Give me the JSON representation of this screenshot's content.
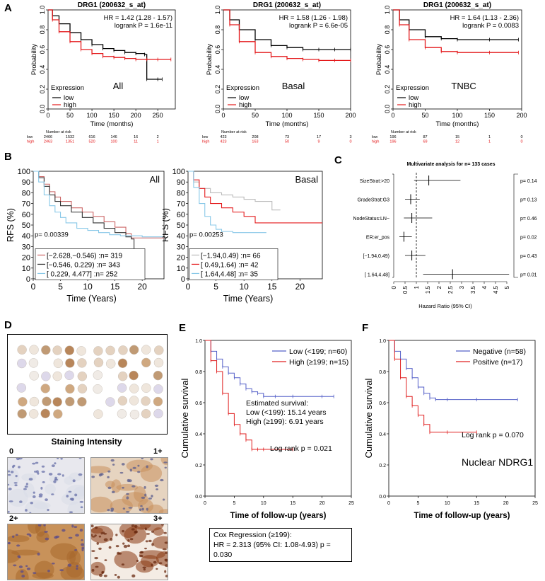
{
  "panel_letters": {
    "a": "A",
    "b": "B",
    "c": "C",
    "d": "D",
    "e": "E",
    "f": "F"
  },
  "chart_data": [
    {
      "id": "A1",
      "type": "line",
      "title": "DRG1 (200632_s_at)",
      "hr_text": "HR = 1.42 (1.28 - 1.57)",
      "p_text": "logrank P = 1.6e-11",
      "subset_label": "All",
      "xlabel": "Time (months)",
      "ylabel": "Probability",
      "xlim": [
        0,
        290
      ],
      "ylim": [
        0,
        1
      ],
      "xticks": [
        0,
        50,
        100,
        150,
        200,
        250
      ],
      "yticks": [
        0.0,
        0.2,
        0.4,
        0.6,
        0.8,
        1.0
      ],
      "legend_title": "Expression",
      "series": [
        {
          "name": "low",
          "color": "#000000",
          "x": [
            0,
            10,
            25,
            50,
            75,
            100,
            125,
            150,
            175,
            200,
            220,
            225,
            250,
            260
          ],
          "y": [
            1,
            0.94,
            0.86,
            0.77,
            0.7,
            0.65,
            0.61,
            0.59,
            0.57,
            0.56,
            0.55,
            0.3,
            0.3,
            0.3
          ]
        },
        {
          "name": "high",
          "color": "#e41a1c",
          "x": [
            0,
            10,
            25,
            50,
            75,
            100,
            125,
            150,
            175,
            200,
            225,
            250,
            280
          ],
          "y": [
            1,
            0.9,
            0.78,
            0.68,
            0.6,
            0.56,
            0.53,
            0.52,
            0.51,
            0.5,
            0.5,
            0.5,
            0.5
          ]
        }
      ],
      "risk_label": "Number at risk",
      "risk_x": [
        0,
        50,
        100,
        150,
        200,
        250
      ],
      "risk_rows": [
        {
          "name": "low",
          "values": [
            "2466",
            "1532",
            "616",
            "146",
            "16",
            "2"
          ]
        },
        {
          "name": "high",
          "values": [
            "2463",
            "1351",
            "520",
            "100",
            "11",
            "1"
          ]
        }
      ]
    },
    {
      "id": "A2",
      "type": "line",
      "title": "DRG1 (200632_s_at)",
      "hr_text": "HR = 1.58 (1.26 - 1.98)",
      "p_text": "logrank P = 6.6e-05",
      "subset_label": "Basal",
      "xlabel": "Time (months)",
      "ylabel": "Probability",
      "xlim": [
        0,
        200
      ],
      "ylim": [
        0,
        1
      ],
      "xticks": [
        0,
        50,
        100,
        150,
        200
      ],
      "yticks": [
        0.0,
        0.2,
        0.4,
        0.6,
        0.8,
        1.0
      ],
      "legend_title": "Expression",
      "series": [
        {
          "name": "low",
          "color": "#000000",
          "x": [
            0,
            10,
            25,
            50,
            75,
            100,
            125,
            150,
            175,
            200
          ],
          "y": [
            1,
            0.9,
            0.8,
            0.7,
            0.64,
            0.62,
            0.6,
            0.6,
            0.6,
            0.6
          ]
        },
        {
          "name": "high",
          "color": "#e41a1c",
          "x": [
            0,
            10,
            25,
            50,
            75,
            100,
            125,
            150,
            175,
            200
          ],
          "y": [
            1,
            0.85,
            0.68,
            0.57,
            0.53,
            0.51,
            0.5,
            0.49,
            0.49,
            0.49
          ]
        }
      ],
      "risk_label": "Number at risk",
      "risk_x": [
        0,
        50,
        100,
        150,
        200
      ],
      "risk_rows": [
        {
          "name": "low",
          "values": [
            "423",
            "208",
            "73",
            "17",
            "3"
          ]
        },
        {
          "name": "high",
          "values": [
            "423",
            "163",
            "50",
            "9",
            "0"
          ]
        }
      ]
    },
    {
      "id": "A3",
      "type": "line",
      "title": "DRG1 (200632_s_at)",
      "hr_text": "HR = 1.64 (1.13 - 2.36)",
      "p_text": "logrank P = 0.0083",
      "subset_label": "TNBC",
      "xlabel": "Time (months)",
      "ylabel": "Probability",
      "xlim": [
        0,
        200
      ],
      "ylim": [
        0,
        1
      ],
      "xticks": [
        0,
        50,
        100,
        150,
        200
      ],
      "yticks": [
        0.0,
        0.2,
        0.4,
        0.6,
        0.8,
        1.0
      ],
      "legend_title": "Expression",
      "series": [
        {
          "name": "low",
          "color": "#000000",
          "x": [
            0,
            10,
            25,
            50,
            75,
            100,
            150,
            195
          ],
          "y": [
            1,
            0.9,
            0.8,
            0.73,
            0.71,
            0.7,
            0.7,
            0.7
          ]
        },
        {
          "name": "high",
          "color": "#e41a1c",
          "x": [
            0,
            10,
            25,
            50,
            75,
            100,
            150,
            195
          ],
          "y": [
            1,
            0.85,
            0.7,
            0.62,
            0.58,
            0.57,
            0.57,
            0.57
          ]
        }
      ],
      "risk_label": "Number at risk",
      "risk_x": [
        0,
        50,
        100,
        150,
        200
      ],
      "risk_rows": [
        {
          "name": "low",
          "values": [
            "196",
            "87",
            "15",
            "1",
            "0"
          ]
        },
        {
          "name": "high",
          "values": [
            "196",
            "69",
            "12",
            "1",
            "0"
          ]
        }
      ]
    },
    {
      "id": "B1",
      "type": "line",
      "subset_label": "All",
      "p_text": "p= 0.00339",
      "xlabel": "Time (Years)",
      "ylabel": "RFS (%)",
      "xlim": [
        0,
        24
      ],
      "ylim": [
        0,
        100
      ],
      "xticks": [
        0,
        5,
        10,
        15,
        20
      ],
      "yticks": [
        0,
        10,
        20,
        30,
        40,
        50,
        60,
        70,
        80,
        90,
        100
      ],
      "series": [
        {
          "name": "[−2.628,−0.546) :n= 319",
          "color": "#cc6666",
          "x": [
            0,
            1,
            2,
            3,
            4,
            5,
            7,
            9,
            11,
            13,
            15,
            17,
            18,
            19,
            20,
            24
          ],
          "y": [
            100,
            95,
            88,
            81,
            76,
            72,
            66,
            62,
            58,
            53,
            48,
            42,
            38,
            38,
            38,
            38
          ]
        },
        {
          "name": "[−0.546, 0.229) :n= 343",
          "color": "#333333",
          "x": [
            0,
            1,
            2,
            3,
            4,
            5,
            7,
            9,
            11,
            13,
            15,
            17,
            18,
            18.5,
            19
          ],
          "y": [
            100,
            94,
            86,
            78,
            72,
            68,
            62,
            57,
            52,
            47,
            43,
            39,
            37,
            25,
            25
          ]
        },
        {
          "name": "[ 0.229, 4.477] :n= 252",
          "color": "#88c8e8",
          "x": [
            0,
            1,
            2,
            3,
            4,
            5,
            6,
            8,
            10,
            12,
            14,
            16,
            18,
            20,
            24
          ],
          "y": [
            100,
            90,
            78,
            68,
            62,
            57,
            52,
            47,
            45,
            43,
            41,
            40,
            40,
            39,
            39
          ]
        }
      ]
    },
    {
      "id": "B2",
      "type": "line",
      "subset_label": "Basal",
      "p_text": "p= 0.00253",
      "xlabel": "Time (Years)",
      "ylabel": "RFS (%)",
      "xlim": [
        0,
        24
      ],
      "ylim": [
        0,
        100
      ],
      "xticks": [
        0,
        5,
        10,
        15,
        20
      ],
      "yticks": [
        0,
        10,
        20,
        30,
        40,
        50,
        60,
        70,
        80,
        90,
        100
      ],
      "series": [
        {
          "name": "[−1.94,0.49) :n= 66",
          "color": "#bbbbbb",
          "x": [
            0,
            1,
            2,
            4,
            6,
            8,
            10,
            12,
            14,
            15,
            16.5
          ],
          "y": [
            100,
            90,
            84,
            80,
            78,
            76,
            74,
            72,
            72,
            64,
            64
          ]
        },
        {
          "name": "[ 0.49,1.64) :n= 42",
          "color": "#e41a1c",
          "x": [
            0,
            1,
            2,
            3,
            4,
            6,
            8,
            10,
            12,
            14,
            16,
            24
          ],
          "y": [
            100,
            92,
            84,
            76,
            70,
            66,
            62,
            58,
            52,
            52,
            52,
            52
          ]
        },
        {
          "name": "[ 1.64,4.48] :n= 35",
          "color": "#88c8e8",
          "x": [
            0,
            1,
            2,
            3,
            4,
            5,
            6,
            8,
            10,
            12,
            14
          ],
          "y": [
            100,
            85,
            70,
            58,
            50,
            46,
            44,
            43,
            43,
            43,
            43
          ]
        }
      ]
    },
    {
      "id": "C",
      "type": "forest",
      "title": "Multivariate analysis for n= 133 cases",
      "xlabel": "Hazard Ratio (95% CI)",
      "xlim": [
        0,
        5
      ],
      "xticks": [
        "0",
        "0.5",
        "1",
        "1.5",
        "2",
        "2.5",
        "3",
        "3.5",
        "4",
        "4.5",
        "5"
      ],
      "rows": [
        {
          "label": "SizeStrat:>20",
          "hr": 1.55,
          "lo": 0.9,
          "hi": 2.95,
          "p": "p= 0.14"
        },
        {
          "label": "GradeStrat:G3",
          "hr": 0.75,
          "lo": 0.5,
          "hi": 1.15,
          "p": "p= 0.13"
        },
        {
          "label": "NodeStatus:LN−",
          "hr": 0.8,
          "lo": 0.45,
          "hi": 1.7,
          "p": "p= 0.46"
        },
        {
          "label": "ER:er_pos",
          "hr": 0.45,
          "lo": 0.25,
          "hi": 0.8,
          "p": "p= 0.02"
        },
        {
          "label": "[−1.94,0.49)",
          "hr": 0.8,
          "lo": 0.5,
          "hi": 1.4,
          "p": "p= 0.43"
        },
        {
          "label": "[ 1.64,4.48]",
          "hr": 2.6,
          "lo": 1.3,
          "hi": 5.2,
          "p": "p= 0.01"
        }
      ]
    },
    {
      "id": "E",
      "type": "line",
      "xlabel": "Time of follow-up (years)",
      "ylabel": "Cumulative survival",
      "xlim": [
        0,
        25
      ],
      "ylim": [
        0,
        1
      ],
      "xticks": [
        0,
        5,
        10,
        15,
        20,
        25
      ],
      "yticks": [
        0.0,
        0.2,
        0.4,
        0.6,
        0.8,
        1.0
      ],
      "series": [
        {
          "name": "Low (<199; n=60)",
          "color": "#5560c8",
          "x": [
            0,
            1,
            2,
            3,
            4,
            5,
            6,
            7,
            8,
            9,
            10,
            12,
            15,
            20,
            22
          ],
          "y": [
            1,
            0.93,
            0.88,
            0.83,
            0.79,
            0.76,
            0.72,
            0.69,
            0.67,
            0.66,
            0.64,
            0.64,
            0.64,
            0.64,
            0.64
          ]
        },
        {
          "name": "High (≥199; n=15)",
          "color": "#e02020",
          "x": [
            0,
            1,
            2,
            3,
            4,
            5,
            6,
            7,
            8,
            9,
            10,
            15
          ],
          "y": [
            1,
            0.87,
            0.8,
            0.66,
            0.53,
            0.46,
            0.4,
            0.36,
            0.3,
            0.3,
            0.3,
            0.3
          ]
        }
      ],
      "estimated_title": "Estimated survival:",
      "estimated_low": "Low (<199): 15.14 years",
      "estimated_high": "High (≥199): 6.91 years",
      "logrank": "Log rank p = 0.021",
      "cox_title": "Cox Regression (≥199):",
      "cox_text": "HR = 2.313 (95% CI: 1.08-4.93) p = 0.030"
    },
    {
      "id": "F",
      "type": "line",
      "xlabel": "Time of follow-up (years)",
      "ylabel": "Cumulative survival",
      "xlim": [
        0,
        25
      ],
      "ylim": [
        0,
        1
      ],
      "xticks": [
        0,
        5,
        10,
        15,
        20,
        25
      ],
      "yticks": [
        0.0,
        0.2,
        0.4,
        0.6,
        0.8,
        1.0
      ],
      "series": [
        {
          "name": "Negative (n=58)",
          "color": "#5560c8",
          "x": [
            0,
            1,
            2,
            3,
            4,
            5,
            6,
            7,
            8,
            10,
            15,
            22
          ],
          "y": [
            1,
            0.93,
            0.88,
            0.82,
            0.76,
            0.7,
            0.66,
            0.63,
            0.62,
            0.62,
            0.62,
            0.62
          ]
        },
        {
          "name": "Positive (n=17)",
          "color": "#e02020",
          "x": [
            0,
            1,
            2,
            3,
            4,
            5,
            6,
            7,
            10,
            15
          ],
          "y": [
            1,
            0.88,
            0.76,
            0.64,
            0.58,
            0.52,
            0.46,
            0.41,
            0.41,
            0.41
          ]
        }
      ],
      "logrank": "Log rank p = 0.070",
      "caption": "Nuclear NDRG1"
    }
  ],
  "panel_d": {
    "title": "Staining Intensity",
    "levels": [
      "0",
      "1+",
      "2+",
      "3+"
    ]
  }
}
